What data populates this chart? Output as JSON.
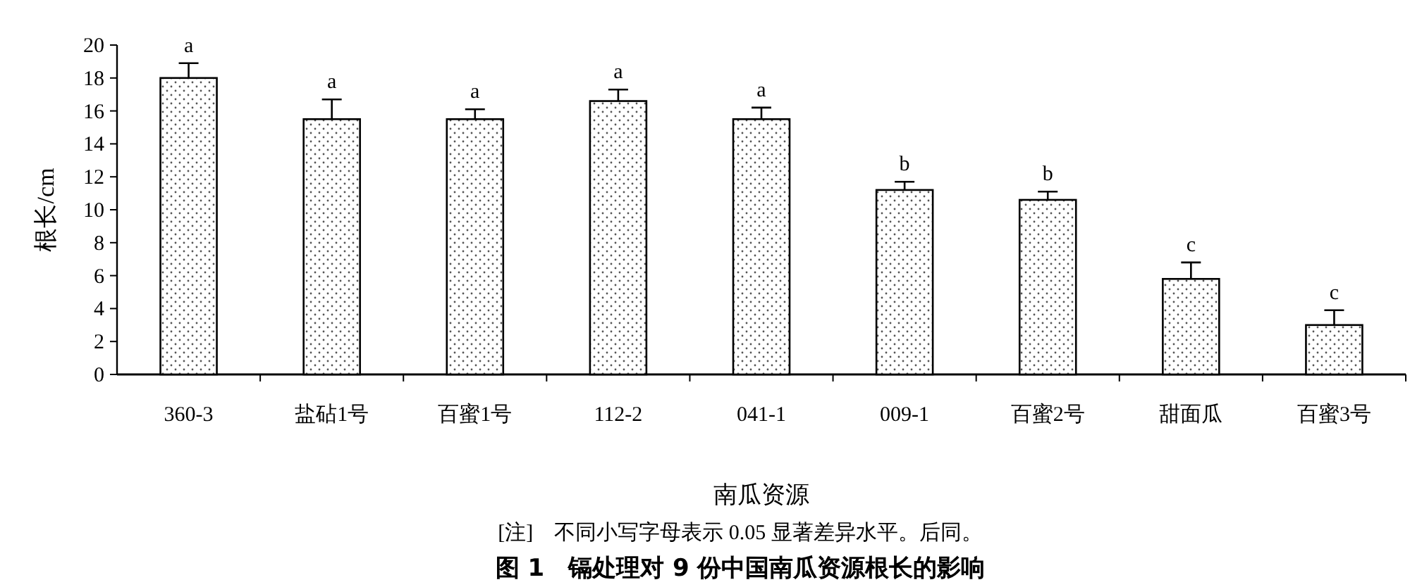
{
  "chart_data": {
    "type": "bar",
    "title": "图 1　镉处理对 9 份中国南瓜资源根长的影响",
    "xlabel": "南瓜资源",
    "ylabel": "根长/cm",
    "categories": [
      "360-3",
      "盐砧1号",
      "百蜜1号",
      "112-2",
      "041-1",
      "009-1",
      "百蜜2号",
      "甜面瓜",
      "百蜜3号"
    ],
    "values": [
      18.0,
      15.5,
      15.5,
      16.6,
      15.5,
      11.2,
      10.6,
      5.8,
      3.0
    ],
    "errors": [
      [
        18.0,
        18.9
      ],
      [
        15.5,
        16.7
      ],
      [
        15.5,
        16.1
      ],
      [
        16.6,
        17.3
      ],
      [
        15.5,
        16.2
      ],
      [
        11.2,
        11.7
      ],
      [
        10.6,
        11.1
      ],
      [
        5.8,
        6.8
      ],
      [
        3.0,
        3.9
      ]
    ],
    "color": "#ffffff",
    "ylim": [
      0,
      20
    ],
    "yticks": [
      0,
      2,
      4,
      6,
      8,
      10,
      12,
      14,
      16,
      18,
      20
    ],
    "grid": false,
    "annotations": [
      {
        "text": "a",
        "x": "360-3",
        "y": 18.9
      },
      {
        "text": "a",
        "x": "盐砧1号",
        "y": 16.7
      },
      {
        "text": "a",
        "x": "百蜜1号",
        "y": 16.1
      },
      {
        "text": "a",
        "x": "112-2",
        "y": 17.3
      },
      {
        "text": "a",
        "x": "041-1",
        "y": 16.2
      },
      {
        "text": "b",
        "x": "009-1",
        "y": 11.7
      },
      {
        "text": "b",
        "x": "百蜜2号",
        "y": 11.1
      },
      {
        "text": "c",
        "x": "甜面瓜",
        "y": 6.8
      },
      {
        "text": "c",
        "x": "百蜜3号",
        "y": 3.9
      },
      "[注]　不同小写字母表示 0.05 显著差异水平。后同。"
    ]
  }
}
